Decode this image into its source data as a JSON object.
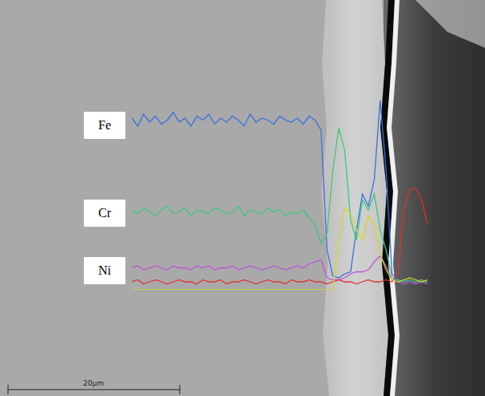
{
  "chart_data": {
    "type": "line",
    "x": [
      0,
      2,
      4,
      6,
      8,
      10,
      12,
      14,
      16,
      18,
      20,
      22,
      24,
      26,
      28,
      30,
      32,
      34,
      36,
      38,
      40,
      42,
      44,
      46,
      48,
      50,
      52,
      54,
      56,
      58,
      60,
      62,
      64,
      66,
      68,
      70,
      72,
      74,
      76,
      78,
      80,
      82,
      84,
      86,
      88,
      90,
      92,
      94,
      96,
      98,
      100
    ],
    "xlim": [
      0,
      100
    ],
    "ylim": [
      0,
      100
    ],
    "tick_labels": false,
    "grid": false,
    "annotations": [
      "20μm"
    ],
    "series": [
      {
        "name": "Fe",
        "color": "#3a6fe0",
        "values": [
          86,
          82,
          88,
          84,
          87,
          83,
          85,
          89,
          84,
          86,
          82,
          87,
          85,
          88,
          83,
          86,
          84,
          87,
          85,
          82,
          88,
          84,
          86,
          85,
          83,
          87,
          85,
          84,
          86,
          83,
          87,
          85,
          80,
          20,
          7,
          6,
          8,
          9,
          30,
          48,
          42,
          55,
          95,
          60,
          8,
          4,
          5,
          4,
          3,
          4,
          3
        ]
      },
      {
        "name": "Cr",
        "color": "#3cc87a",
        "values": [
          40,
          38,
          41,
          39,
          37,
          40,
          42,
          38,
          39,
          41,
          37,
          40,
          39,
          38,
          41,
          40,
          38,
          39,
          42,
          37,
          40,
          39,
          38,
          41,
          39,
          40,
          37,
          39,
          38,
          40,
          36,
          33,
          23,
          28,
          60,
          81,
          70,
          35,
          25,
          45,
          40,
          48,
          30,
          20,
          6,
          5,
          4,
          5,
          4,
          5,
          4
        ]
      },
      {
        "name": "Ni",
        "color": "#c050d8",
        "values": [
          11,
          12,
          10,
          11,
          12,
          11,
          10,
          12,
          11,
          11,
          10,
          12,
          11,
          12,
          10,
          11,
          11,
          12,
          10,
          11,
          12,
          11,
          10,
          11,
          12,
          11,
          10,
          11,
          12,
          11,
          13,
          14,
          15,
          6,
          5,
          5,
          6,
          8,
          9,
          9,
          10,
          14,
          17,
          12,
          5,
          4,
          3,
          4,
          3,
          4,
          3
        ]
      },
      {
        "color": "#e03030",
        "values": [
          4,
          5,
          3,
          4,
          5,
          4,
          3,
          4,
          5,
          4,
          4,
          3,
          5,
          4,
          4,
          5,
          3,
          4,
          4,
          5,
          4,
          3,
          4,
          5,
          4,
          4,
          3,
          5,
          4,
          4,
          5,
          4,
          4,
          3,
          4,
          5,
          4,
          4,
          3,
          4,
          5,
          4,
          4,
          5,
          4,
          8,
          40,
          50,
          51,
          45,
          33
        ]
      },
      {
        "color": "#d8d820",
        "values": [
          0,
          0,
          0,
          0,
          0,
          0,
          0,
          0,
          0,
          0,
          0,
          0,
          0,
          0,
          0,
          0,
          0,
          0,
          0,
          0,
          0,
          0,
          0,
          0,
          0,
          0,
          0,
          0,
          0,
          0,
          0,
          0,
          0,
          0,
          0,
          25,
          41,
          38,
          30,
          25,
          37,
          33,
          18,
          10,
          5,
          4,
          5,
          6,
          5,
          4,
          5
        ]
      }
    ]
  }
}
